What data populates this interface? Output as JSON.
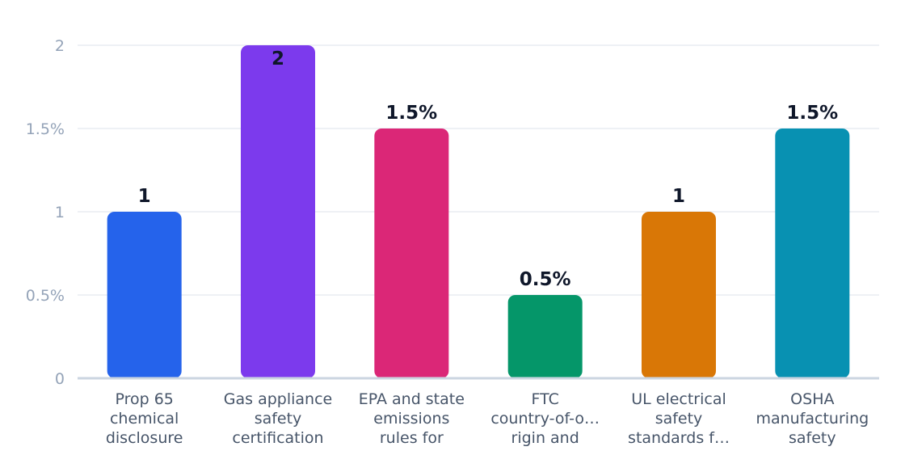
{
  "chart_data": {
    "type": "bar",
    "categories": [
      [
        "Prop 65",
        "chemical",
        "disclosure"
      ],
      [
        "Gas appliance",
        "safety",
        "certification"
      ],
      [
        "EPA and state",
        "emissions",
        "rules for"
      ],
      [
        "FTC",
        "country-of-o…",
        "rigin and"
      ],
      [
        "UL electrical",
        "safety",
        "standards f…"
      ],
      [
        "OSHA",
        "manufacturing",
        "safety"
      ]
    ],
    "values": [
      1,
      2,
      1.5,
      0.5,
      1,
      1.5
    ],
    "value_labels": [
      "1",
      "2",
      "1.5%",
      "0.5%",
      "1",
      "1.5%"
    ],
    "colors": [
      "#2563eb",
      "#7c3aed",
      "#db2777",
      "#059669",
      "#d97706",
      "#0891b2"
    ],
    "y_ticks": [
      0,
      0.5,
      1,
      1.5,
      2
    ],
    "y_tick_labels": [
      "0",
      "0.5%",
      "1",
      "1.5%",
      "2"
    ],
    "ylim": [
      0,
      2
    ],
    "grid": true,
    "title": "",
    "xlabel": "",
    "ylabel": ""
  }
}
